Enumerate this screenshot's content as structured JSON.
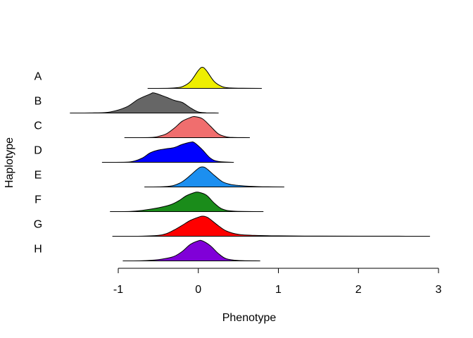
{
  "chart_data": {
    "type": "ridgeline",
    "title": "",
    "xlabel": "Phenotype",
    "ylabel": "Haplotype",
    "xlim": [
      -1.05,
      3.1
    ],
    "xticks": [
      -1,
      0,
      1,
      2,
      3
    ],
    "xtick_labels": [
      "-1",
      "0",
      "1",
      "2",
      "3"
    ],
    "grid": false,
    "legend": "none",
    "series": [
      {
        "name": "A",
        "color": "#EEEE00",
        "range": [
          -0.63,
          0.79
        ],
        "density": [
          [
            -0.63,
            0
          ],
          [
            -0.4,
            0.003
          ],
          [
            -0.3,
            0.02
          ],
          [
            -0.2,
            0.08
          ],
          [
            -0.1,
            0.32
          ],
          [
            0.0,
            0.85
          ],
          [
            0.05,
            1.0
          ],
          [
            0.1,
            0.85
          ],
          [
            0.2,
            0.32
          ],
          [
            0.3,
            0.08
          ],
          [
            0.4,
            0.02
          ],
          [
            0.55,
            0.005
          ],
          [
            0.79,
            0
          ]
        ]
      },
      {
        "name": "B",
        "color": "#666666",
        "range": [
          -1.6,
          0.25
        ],
        "density": [
          [
            -1.6,
            0
          ],
          [
            -1.3,
            0.005
          ],
          [
            -1.1,
            0.05
          ],
          [
            -0.9,
            0.28
          ],
          [
            -0.75,
            0.65
          ],
          [
            -0.6,
            0.9
          ],
          [
            -0.55,
            0.95
          ],
          [
            -0.4,
            0.75
          ],
          [
            -0.3,
            0.6
          ],
          [
            -0.2,
            0.5
          ],
          [
            -0.1,
            0.25
          ],
          [
            0.0,
            0.05
          ],
          [
            0.1,
            0.01
          ],
          [
            0.25,
            0
          ]
        ]
      },
      {
        "name": "C",
        "color": "#F06E6E",
        "range": [
          -0.92,
          0.64
        ],
        "density": [
          [
            -0.92,
            0
          ],
          [
            -0.6,
            0.01
          ],
          [
            -0.5,
            0.06
          ],
          [
            -0.4,
            0.18
          ],
          [
            -0.3,
            0.45
          ],
          [
            -0.2,
            0.78
          ],
          [
            -0.1,
            0.95
          ],
          [
            -0.05,
            1.0
          ],
          [
            0.05,
            0.9
          ],
          [
            0.15,
            0.55
          ],
          [
            0.25,
            0.18
          ],
          [
            0.35,
            0.04
          ],
          [
            0.45,
            0.01
          ],
          [
            0.64,
            0
          ]
        ]
      },
      {
        "name": "D",
        "color": "#0000FF",
        "range": [
          -1.2,
          0.44
        ],
        "density": [
          [
            -1.2,
            0
          ],
          [
            -0.9,
            0.01
          ],
          [
            -0.8,
            0.06
          ],
          [
            -0.7,
            0.2
          ],
          [
            -0.6,
            0.45
          ],
          [
            -0.5,
            0.58
          ],
          [
            -0.4,
            0.64
          ],
          [
            -0.3,
            0.7
          ],
          [
            -0.2,
            0.85
          ],
          [
            -0.1,
            0.95
          ],
          [
            -0.05,
            0.93
          ],
          [
            0.05,
            0.6
          ],
          [
            0.15,
            0.2
          ],
          [
            0.25,
            0.04
          ],
          [
            0.44,
            0
          ]
        ]
      },
      {
        "name": "E",
        "color": "#1C8FF0",
        "range": [
          -0.67,
          1.07
        ],
        "density": [
          [
            -0.67,
            0
          ],
          [
            -0.5,
            0.003
          ],
          [
            -0.4,
            0.02
          ],
          [
            -0.3,
            0.08
          ],
          [
            -0.2,
            0.25
          ],
          [
            -0.1,
            0.55
          ],
          [
            0.0,
            0.88
          ],
          [
            0.05,
            0.95
          ],
          [
            0.1,
            0.88
          ],
          [
            0.2,
            0.55
          ],
          [
            0.3,
            0.25
          ],
          [
            0.4,
            0.12
          ],
          [
            0.5,
            0.07
          ],
          [
            0.65,
            0.03
          ],
          [
            0.8,
            0.01
          ],
          [
            1.07,
            0
          ]
        ]
      },
      {
        "name": "F",
        "color": "#1A8C1A",
        "range": [
          -1.1,
          0.81
        ],
        "density": [
          [
            -1.1,
            0
          ],
          [
            -0.85,
            0.01
          ],
          [
            -0.7,
            0.06
          ],
          [
            -0.5,
            0.18
          ],
          [
            -0.35,
            0.32
          ],
          [
            -0.25,
            0.5
          ],
          [
            -0.15,
            0.75
          ],
          [
            -0.05,
            0.9
          ],
          [
            0.0,
            0.92
          ],
          [
            0.1,
            0.78
          ],
          [
            0.2,
            0.4
          ],
          [
            0.3,
            0.12
          ],
          [
            0.45,
            0.02
          ],
          [
            0.81,
            0
          ]
        ]
      },
      {
        "name": "G",
        "color": "#FF0000",
        "range": [
          -1.07,
          2.89
        ],
        "density": [
          [
            -1.07,
            0
          ],
          [
            -0.7,
            0.005
          ],
          [
            -0.5,
            0.04
          ],
          [
            -0.4,
            0.12
          ],
          [
            -0.3,
            0.3
          ],
          [
            -0.2,
            0.52
          ],
          [
            -0.1,
            0.75
          ],
          [
            0.0,
            0.9
          ],
          [
            0.05,
            0.95
          ],
          [
            0.12,
            0.88
          ],
          [
            0.25,
            0.5
          ],
          [
            0.35,
            0.25
          ],
          [
            0.5,
            0.09
          ],
          [
            0.7,
            0.04
          ],
          [
            1.0,
            0.02
          ],
          [
            1.5,
            0.008
          ],
          [
            2.0,
            0.004
          ],
          [
            2.5,
            0.002
          ],
          [
            2.89,
            0
          ]
        ]
      },
      {
        "name": "H",
        "color": "#8000D8",
        "range": [
          -0.94,
          0.77
        ],
        "density": [
          [
            -0.94,
            0
          ],
          [
            -0.7,
            0.01
          ],
          [
            -0.5,
            0.06
          ],
          [
            -0.4,
            0.12
          ],
          [
            -0.3,
            0.22
          ],
          [
            -0.2,
            0.45
          ],
          [
            -0.1,
            0.78
          ],
          [
            0.0,
            0.95
          ],
          [
            0.05,
            0.95
          ],
          [
            0.15,
            0.72
          ],
          [
            0.25,
            0.35
          ],
          [
            0.35,
            0.1
          ],
          [
            0.5,
            0.02
          ],
          [
            0.77,
            0
          ]
        ]
      }
    ]
  }
}
